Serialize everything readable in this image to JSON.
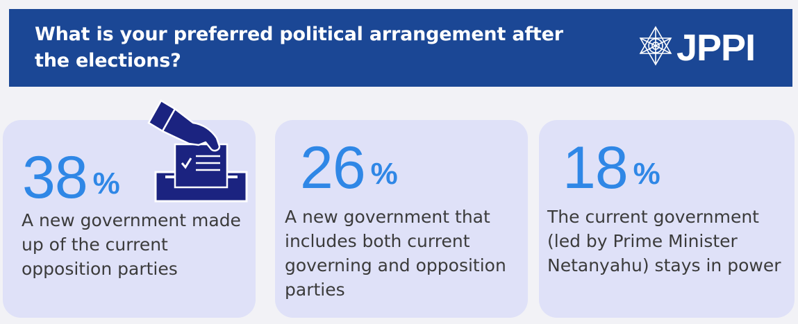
{
  "header": {
    "title": "What is your preferred political arrangement after the elections?",
    "background_color": "#1b4795"
  },
  "logo": {
    "text": "JPPI",
    "icon": "star-of-david-icon"
  },
  "decoration": {
    "icon": "ballot-box-icon"
  },
  "colors": {
    "percent": "#2f87e6",
    "card_background": "#dfe1f8",
    "page_background": "#f2f2f6"
  },
  "cards": [
    {
      "value": "38",
      "unit": "%",
      "description": "A new government made up of the current opposition parties"
    },
    {
      "value": "26",
      "unit": "%",
      "description": "A new government that includes both current governing and opposition parties"
    },
    {
      "value": "18",
      "unit": "%",
      "description": "The current government (led by Prime Minister Netanyahu) stays in power"
    }
  ],
  "chart_data": {
    "type": "table",
    "title": "What is your preferred political arrangement after the elections?",
    "categories": [
      "A new government made up of the current opposition parties",
      "A new government that includes both current governing and opposition parties",
      "The current government (led by Prime Minister Netanyahu) stays in power"
    ],
    "values": [
      38,
      26,
      18
    ],
    "unit": "%"
  }
}
